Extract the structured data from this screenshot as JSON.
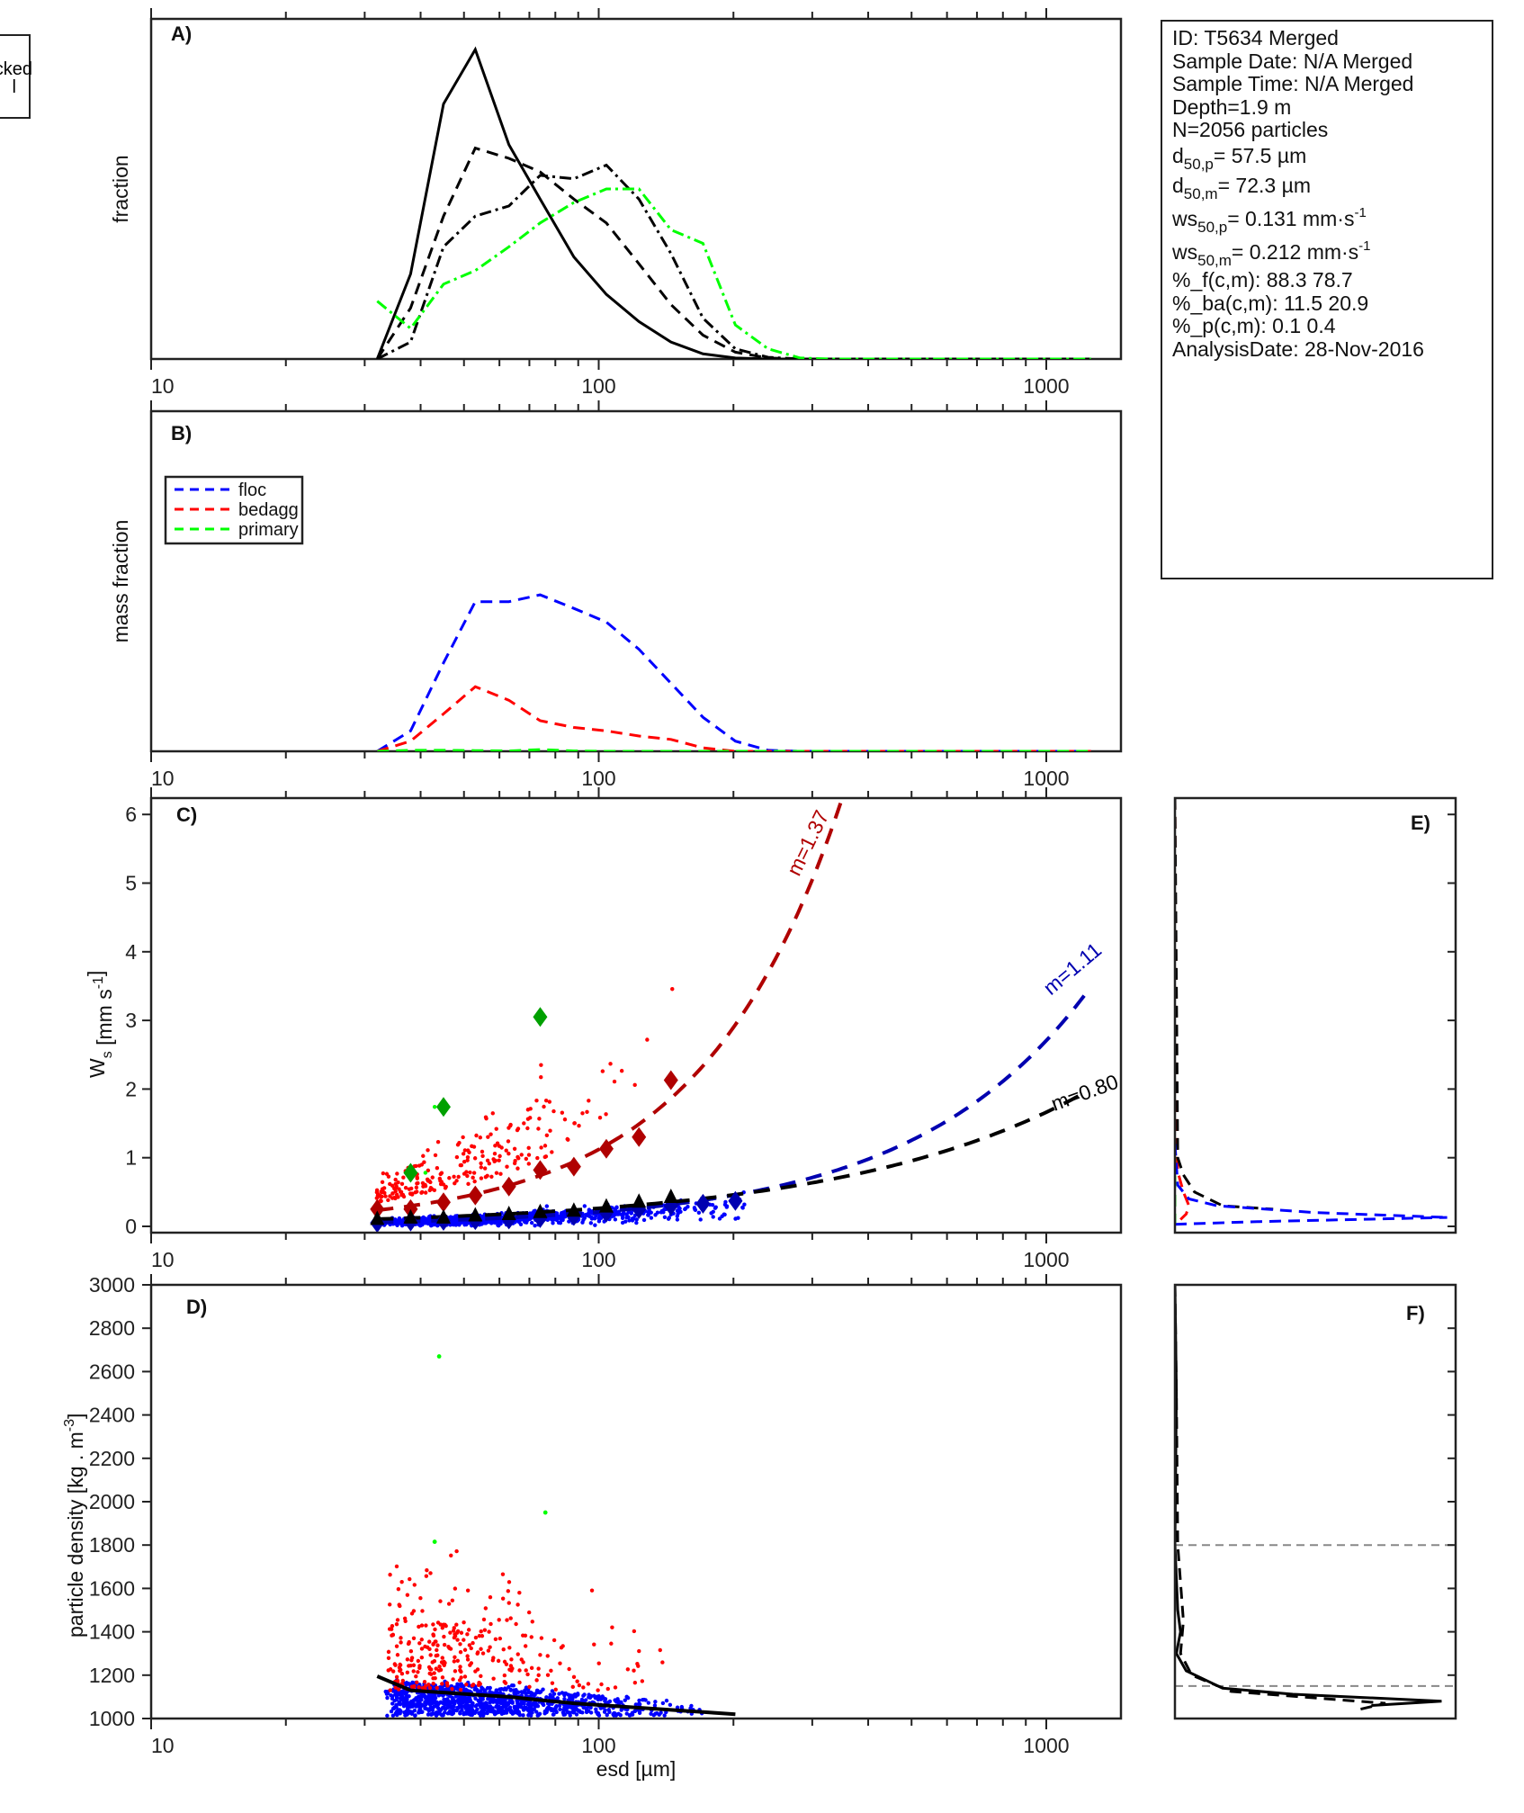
{
  "legend_cropped": {
    "line1": "acked",
    "line2": "l"
  },
  "info": {
    "id": "ID: T5634 Merged",
    "sample_date": "Sample Date: N/A Merged",
    "sample_time": "Sample Time: N/A Merged",
    "depth": "Depth=1.9 m",
    "n": "N=2056 particles",
    "d50p": {
      "pre": "d",
      "sub": "50,p",
      "post": "=  57.5 µm"
    },
    "d50m": {
      "pre": "d",
      "sub": "50,m",
      "post": "=  72.3 µm"
    },
    "ws50p": {
      "pre": "ws",
      "sub": "50,p",
      "post": "= 0.131 mm·s",
      "sup": "-1"
    },
    "ws50m": {
      "pre": "ws",
      "sub": "50,m",
      "post": "= 0.212 mm·s",
      "sup": "-1"
    },
    "pf": "%_f(c,m): 88.3 78.7",
    "pba": "%_ba(c,m): 11.5 20.9",
    "pp": "%_p(c,m): 0.1 0.4",
    "analysis_date": "AnalysisDate: 28-Nov-2016"
  },
  "colors": {
    "floc": "#0000ff",
    "bedagg": "#ff0000",
    "primary": "#00ff00",
    "floc_dark": "#0000b0",
    "bedagg_dark": "#b00000",
    "primary_dark": "#00a000",
    "all": "#000000",
    "ref": "#888888"
  },
  "chart_data": [
    {
      "id": "A",
      "type": "line",
      "panel_label": "A)",
      "ylabel": "fraction",
      "xscale": "log",
      "xlim": [
        10,
        1500
      ],
      "ylim": [
        0,
        1
      ],
      "xticklabels": [
        "10",
        "100",
        "1000"
      ],
      "x": [
        32,
        38,
        45,
        53,
        63,
        74,
        88,
        104,
        123,
        145,
        171,
        202,
        239,
        282,
        333,
        393,
        464,
        548,
        647,
        764,
        902,
        1065,
        1258
      ],
      "series": [
        {
          "name": "number-all",
          "style": "solid",
          "color": "#000000",
          "values": [
            0,
            0.25,
            0.75,
            0.91,
            0.63,
            0.47,
            0.3,
            0.19,
            0.11,
            0.05,
            0.015,
            0.003,
            0,
            0,
            0,
            0,
            0,
            0,
            0,
            0,
            0,
            0,
            0
          ]
        },
        {
          "name": "mass-all",
          "style": "dashed",
          "color": "#000000",
          "values": [
            0,
            0.15,
            0.42,
            0.62,
            0.59,
            0.55,
            0.47,
            0.4,
            0.28,
            0.16,
            0.07,
            0.02,
            0.003,
            0,
            0,
            0,
            0,
            0,
            0,
            0,
            0,
            0,
            0
          ]
        },
        {
          "name": "volume-all",
          "style": "dashdot",
          "color": "#000000",
          "values": [
            0,
            0.05,
            0.33,
            0.42,
            0.45,
            0.54,
            0.53,
            0.57,
            0.47,
            0.31,
            0.12,
            0.03,
            0.005,
            0,
            0,
            0,
            0,
            0,
            0,
            0,
            0,
            0,
            0
          ]
        },
        {
          "name": "volume-green",
          "style": "dashdot",
          "color": "#00ff00",
          "values": [
            0.17,
            0.09,
            0.22,
            0.26,
            0.33,
            0.4,
            0.46,
            0.5,
            0.5,
            0.38,
            0.34,
            0.1,
            0.03,
            0.003,
            0,
            0,
            0,
            0,
            0,
            0,
            0,
            0,
            0
          ]
        }
      ]
    },
    {
      "id": "B",
      "type": "line",
      "panel_label": "B)",
      "ylabel": "mass fraction",
      "xscale": "log",
      "xlim": [
        10,
        1500
      ],
      "ylim": [
        0,
        1
      ],
      "xticklabels": [
        "10",
        "100",
        "1000"
      ],
      "legend_position": "upper-left",
      "x": [
        32,
        38,
        45,
        53,
        63,
        74,
        88,
        104,
        123,
        145,
        171,
        202,
        239,
        282,
        333,
        393,
        464,
        548,
        647,
        764,
        902,
        1065,
        1258
      ],
      "series": [
        {
          "name": "floc",
          "style": "dashed",
          "color": "#0000ff",
          "values": [
            0,
            0.06,
            0.26,
            0.44,
            0.44,
            0.46,
            0.42,
            0.38,
            0.3,
            0.2,
            0.1,
            0.03,
            0.003,
            0,
            0,
            0,
            0,
            0,
            0,
            0,
            0,
            0,
            0
          ]
        },
        {
          "name": "bedagg",
          "style": "dashed",
          "color": "#ff0000",
          "values": [
            0,
            0.03,
            0.11,
            0.19,
            0.15,
            0.09,
            0.07,
            0.06,
            0.045,
            0.035,
            0.01,
            0,
            0,
            0,
            0,
            0,
            0,
            0,
            0,
            0,
            0,
            0,
            0
          ]
        },
        {
          "name": "primary",
          "style": "dashed",
          "color": "#00ff00",
          "values": [
            0,
            0.003,
            0.003,
            0.002,
            0.001,
            0.005,
            0.001,
            0,
            0,
            0,
            0,
            0,
            0,
            0,
            0,
            0,
            0,
            0,
            0,
            0,
            0,
            0,
            0
          ]
        }
      ]
    },
    {
      "id": "C",
      "type": "scatter",
      "panel_label": "C)",
      "ylabel": "W",
      "ylabel_sub": "s",
      "ylabel_unit": " [mm s",
      "ylabel_sup": "-1",
      "ylabel_close": "]",
      "xscale": "log",
      "xlim": [
        10,
        1500
      ],
      "ylim": [
        -0.1,
        6.24
      ],
      "xticklabels": [
        "10",
        "100",
        "1000"
      ],
      "yticks": [
        0,
        1,
        2,
        3,
        4,
        5,
        6
      ],
      "yticklabels": [
        "0",
        "1",
        "2",
        "3",
        "4",
        "5",
        "6"
      ],
      "binned": [
        {
          "name": "bedagg-mean",
          "marker": "diamond",
          "color": "#b00000",
          "x": [
            32,
            38,
            45,
            53,
            63,
            74,
            88,
            104,
            123,
            145
          ],
          "y": [
            0.25,
            0.25,
            0.35,
            0.45,
            0.58,
            0.82,
            0.87,
            1.13,
            1.3,
            2.13
          ]
        },
        {
          "name": "floc-mean",
          "marker": "diamond",
          "color": "#0000b0",
          "x": [
            32,
            38,
            45,
            53,
            63,
            74,
            88,
            104,
            123,
            145,
            171,
            202
          ],
          "y": [
            0.05,
            0.07,
            0.08,
            0.09,
            0.1,
            0.12,
            0.15,
            0.2,
            0.25,
            0.3,
            0.33,
            0.37
          ]
        },
        {
          "name": "all-mean",
          "marker": "triangle",
          "color": "#000000",
          "x": [
            32,
            38,
            45,
            53,
            63,
            74,
            88,
            104,
            123,
            145
          ],
          "y": [
            0.1,
            0.12,
            0.12,
            0.15,
            0.17,
            0.2,
            0.22,
            0.28,
            0.35,
            0.42
          ]
        },
        {
          "name": "primary-mean",
          "marker": "diamond",
          "color": "#00a000",
          "x": [
            38,
            45,
            74
          ],
          "y": [
            0.78,
            1.74,
            3.05
          ]
        }
      ],
      "fits": [
        {
          "name": "bedagg-fit",
          "label": "m=1.37",
          "m": 1.37,
          "coef": 0.00204,
          "color": "#b00000"
        },
        {
          "name": "floc-fit",
          "label": "m=1.11",
          "m": 1.11,
          "coef": 0.001266,
          "color": "#0000b0"
        },
        {
          "name": "all-fit",
          "label": "m=0.80",
          "m": 0.8,
          "coef": 0.00662,
          "color": "#000000"
        }
      ]
    },
    {
      "id": "D",
      "type": "scatter",
      "panel_label": "D)",
      "ylabel": "particle density [kg . m",
      "ylabel_sup": "-3",
      "ylabel_close": "]",
      "xlabel": "esd [µm]",
      "xscale": "log",
      "xlim": [
        10,
        1500
      ],
      "ylim": [
        1000,
        3000
      ],
      "xticklabels": [
        "10",
        "100",
        "1000"
      ],
      "yticks": [
        1000,
        1200,
        1400,
        1600,
        1800,
        2000,
        2200,
        2400,
        2600,
        2800,
        3000
      ],
      "yticklabels": [
        "1000",
        "1200",
        "1400",
        "1600",
        "1800",
        "2000",
        "2200",
        "2400",
        "2600",
        "2800",
        "3000"
      ],
      "mean_line": {
        "x": [
          32,
          38,
          45,
          53,
          63,
          74,
          88,
          104,
          123,
          145,
          171,
          202
        ],
        "y": [
          1195,
          1130,
          1120,
          1110,
          1100,
          1085,
          1070,
          1060,
          1050,
          1040,
          1030,
          1020
        ]
      },
      "primary_points": {
        "x": [
          44,
          43,
          76
        ],
        "y": [
          2670,
          1815,
          1950
        ]
      }
    },
    {
      "id": "E",
      "type": "line",
      "panel_label": "E)",
      "xlim": [
        0,
        1
      ],
      "ylim": [
        -0.1,
        6.24
      ],
      "yticks": [
        0,
        1,
        2,
        3,
        4,
        5,
        6
      ],
      "series": [
        {
          "name": "primary-profile",
          "style": "dashed",
          "color": "#00ff00",
          "x": [
            0,
            0,
            0
          ],
          "y": [
            6.24,
            1.0,
            0
          ]
        },
        {
          "name": "bedagg-profile",
          "style": "dashed",
          "color": "#ff0000",
          "x": [
            0,
            0.005,
            0.01,
            0.03,
            0.05,
            0.04,
            0.02
          ],
          "y": [
            6.24,
            1.5,
            0.8,
            0.5,
            0.3,
            0.18,
            0.1
          ]
        },
        {
          "name": "all-profile",
          "style": "dashed",
          "color": "#000000",
          "x": [
            0,
            0.01,
            0.03,
            0.07,
            0.17,
            0.35
          ],
          "y": [
            6.24,
            1.0,
            0.75,
            0.5,
            0.3,
            0.25
          ]
        },
        {
          "name": "floc-profile-upper",
          "style": "dashed",
          "color": "#0000ff",
          "x": [
            0,
            0.01,
            0.05,
            0.15,
            0.5,
            0.97
          ],
          "y": [
            1.2,
            0.6,
            0.4,
            0.3,
            0.2,
            0.13
          ]
        },
        {
          "name": "floc-profile-lower",
          "style": "dashed",
          "color": "#0000ff",
          "x": [
            0,
            0.3,
            0.97
          ],
          "y": [
            0.03,
            0.07,
            0.13
          ]
        }
      ]
    },
    {
      "id": "F",
      "type": "line",
      "panel_label": "F)",
      "xlim": [
        0,
        1
      ],
      "ylim": [
        1000,
        3000
      ],
      "yticks": [
        1000,
        1200,
        1400,
        1600,
        1800,
        2000,
        2200,
        2400,
        2600,
        2800,
        3000
      ],
      "reference_lines": [
        1800,
        1150
      ],
      "series": [
        {
          "name": "density-profile-number",
          "style": "solid",
          "color": "#000000",
          "x": [
            0,
            0.005,
            0,
            0.01,
            0.02,
            0.005,
            0.04,
            0.17,
            0.42,
            0.95,
            0.7
          ],
          "y": [
            3000,
            2500,
            1800,
            1500,
            1400,
            1300,
            1220,
            1140,
            1112,
            1080,
            1060
          ]
        },
        {
          "name": "density-profile-mass",
          "style": "dashed",
          "color": "#000000",
          "x": [
            0,
            0.005,
            0.01,
            0.03,
            0.02,
            0.06,
            0.2,
            0.45,
            0.75,
            0.65
          ],
          "y": [
            3000,
            2500,
            1800,
            1450,
            1300,
            1200,
            1125,
            1100,
            1070,
            1040
          ]
        }
      ]
    }
  ]
}
